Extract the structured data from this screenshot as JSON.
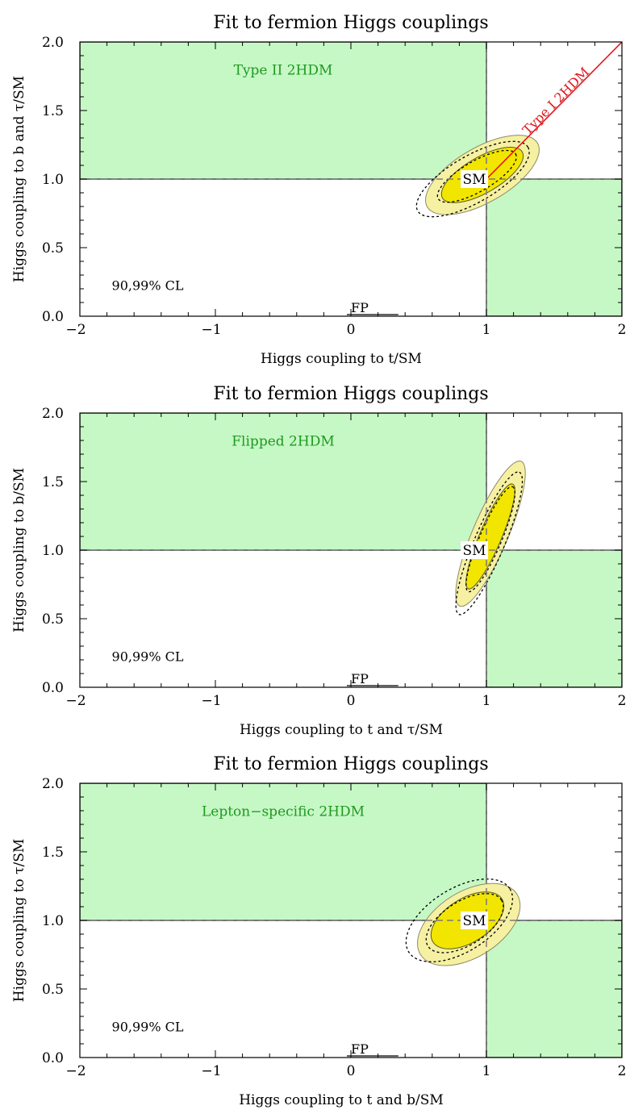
{
  "chart_data": [
    {
      "type": "contour",
      "title": "Fit to fermion Higgs couplings",
      "xlabel": "Higgs coupling to t/SM",
      "ylabel": "Higgs coupling to b and τ/SM",
      "xlim": [
        -2,
        2
      ],
      "ylim": [
        0,
        2
      ],
      "xticks": [
        "−2",
        "−1",
        "0",
        "1",
        "2"
      ],
      "yticks": [
        "0.0",
        "0.5",
        "1.0",
        "1.5",
        "2.0"
      ],
      "model_label": "Type II 2HDM",
      "cl_label": "90,99% CL",
      "fp_label": "FP",
      "sm_label": "SM",
      "sm_point": [
        1,
        1
      ],
      "line_label": "Type I 2HDM",
      "line": [
        [
          1,
          1
        ],
        [
          2,
          2
        ]
      ],
      "regions": [
        {
          "x": [
            -2,
            1
          ],
          "y": [
            1,
            2
          ]
        },
        {
          "x": [
            1,
            2
          ],
          "y": [
            0,
            1
          ]
        }
      ],
      "ellipses": [
        {
          "level": "99%",
          "center": [
            0.97,
            1.03
          ],
          "rx": 0.47,
          "ry": 0.2,
          "angle": 30,
          "style": "light-yellow"
        },
        {
          "level": "90%",
          "center": [
            0.97,
            1.03
          ],
          "rx": 0.34,
          "ry": 0.13,
          "angle": 30,
          "style": "yellow"
        },
        {
          "level": "99%",
          "center": [
            0.9,
            1.0
          ],
          "rx": 0.47,
          "ry": 0.17,
          "angle": 30,
          "style": "dashed"
        },
        {
          "level": "90%",
          "center": [
            0.93,
            1.02
          ],
          "rx": 0.33,
          "ry": 0.11,
          "angle": 30,
          "style": "dashed"
        }
      ]
    },
    {
      "type": "contour",
      "title": "Fit to fermion Higgs couplings",
      "xlabel": "Higgs coupling to t and τ/SM",
      "ylabel": "Higgs coupling to b/SM",
      "xlim": [
        -2,
        2
      ],
      "ylim": [
        0,
        2
      ],
      "xticks": [
        "−2",
        "−1",
        "0",
        "1",
        "2"
      ],
      "yticks": [
        "0.0",
        "0.5",
        "1.0",
        "1.5",
        "2.0"
      ],
      "model_label": "Flipped 2HDM",
      "cl_label": "90,99% CL",
      "fp_label": "FP",
      "sm_label": "SM",
      "sm_point": [
        1,
        1
      ],
      "regions": [
        {
          "x": [
            -2,
            1
          ],
          "y": [
            1,
            2
          ]
        },
        {
          "x": [
            1,
            2
          ],
          "y": [
            0,
            1
          ]
        }
      ],
      "ellipses": [
        {
          "level": "99%",
          "center": [
            1.03,
            1.12
          ],
          "rx": 0.58,
          "ry": 0.13,
          "angle": 67,
          "style": "light-yellow"
        },
        {
          "level": "90%",
          "center": [
            1.03,
            1.1
          ],
          "rx": 0.42,
          "ry": 0.08,
          "angle": 67,
          "style": "yellow"
        },
        {
          "level": "99%",
          "center": [
            1.02,
            1.05
          ],
          "rx": 0.57,
          "ry": 0.11,
          "angle": 67,
          "style": "dashed"
        },
        {
          "level": "90%",
          "center": [
            1.03,
            1.08
          ],
          "rx": 0.42,
          "ry": 0.08,
          "angle": 67,
          "style": "dashed"
        }
      ]
    },
    {
      "type": "contour",
      "title": "Fit to fermion Higgs couplings",
      "xlabel": "Higgs coupling to t and b/SM",
      "ylabel": "Higgs coupling to τ/SM",
      "xlim": [
        -2,
        2
      ],
      "ylim": [
        0,
        2
      ],
      "xticks": [
        "−2",
        "−1",
        "0",
        "1",
        "2"
      ],
      "yticks": [
        "0.0",
        "0.5",
        "1.0",
        "1.5",
        "2.0"
      ],
      "model_label": "Lepton−specific 2HDM",
      "cl_label": "90,99% CL",
      "fp_label": "FP",
      "sm_label": "SM",
      "sm_point": [
        1,
        1
      ],
      "regions": [
        {
          "x": [
            -2,
            1
          ],
          "y": [
            1,
            2
          ]
        },
        {
          "x": [
            1,
            2
          ],
          "y": [
            0,
            1
          ]
        }
      ],
      "ellipses": [
        {
          "level": "99%",
          "center": [
            0.87,
            0.97
          ],
          "rx": 0.42,
          "ry": 0.24,
          "angle": 32,
          "style": "light-yellow"
        },
        {
          "level": "90%",
          "center": [
            0.86,
            1.0
          ],
          "rx": 0.3,
          "ry": 0.16,
          "angle": 32,
          "style": "yellow"
        },
        {
          "level": "99%",
          "center": [
            0.8,
            1.0
          ],
          "rx": 0.44,
          "ry": 0.23,
          "angle": 32,
          "style": "dashed"
        },
        {
          "level": "90%",
          "center": [
            0.84,
            0.98
          ],
          "rx": 0.32,
          "ry": 0.16,
          "angle": 32,
          "style": "dashed"
        }
      ]
    }
  ]
}
